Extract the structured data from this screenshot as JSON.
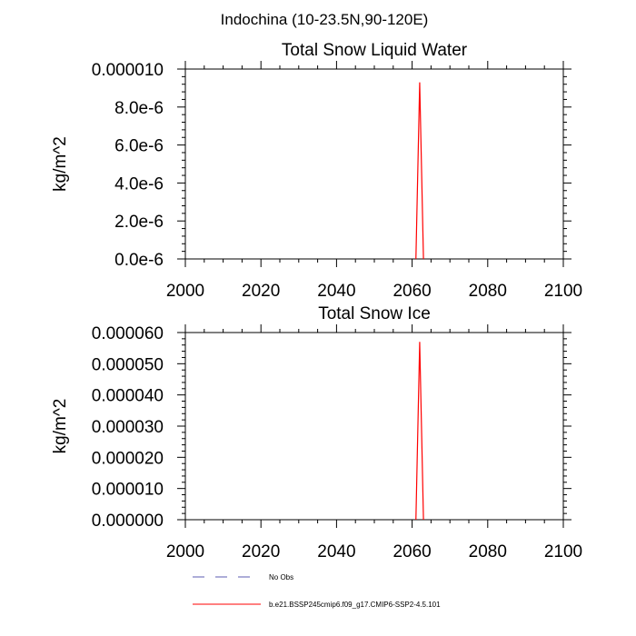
{
  "page_title": "Indochina (10-23.5N,90-120E)",
  "colors": {
    "model_line": "#ff0000",
    "obs_line": "#5b5bb0",
    "axis": "#000000"
  },
  "legend": {
    "items": [
      {
        "label": "No Obs",
        "style": "dashed",
        "color": "#5b5bb0"
      },
      {
        "label": "b.e21.BSSP245cmip6.f09_g17.CMIP6-SSP2-4.5.101",
        "style": "solid",
        "color": "#ff0000"
      }
    ]
  },
  "chart_data": [
    {
      "type": "line",
      "title": "Total Snow Liquid Water",
      "xlabel": "",
      "ylabel": "kg/m^2",
      "xlim": [
        2000,
        2100
      ],
      "ylim": [
        0,
        1e-05
      ],
      "x_ticks": [
        2000,
        2020,
        2040,
        2060,
        2080,
        2100
      ],
      "y_ticks": [
        0,
        2e-06,
        4e-06,
        6e-06,
        8e-06,
        1e-05
      ],
      "y_tick_labels": [
        "0.0e-6",
        "2.0e-6",
        "4.0e-6",
        "6.0e-6",
        "8.0e-6",
        "0.000010"
      ],
      "grid": false,
      "series": [
        {
          "name": "b.e21.BSSP245cmip6.f09_g17.CMIP6-SSP2-4.5.101",
          "x": [
            2061,
            2062,
            2063
          ],
          "y": [
            0,
            9.3e-06,
            0
          ]
        }
      ]
    },
    {
      "type": "line",
      "title": "Total Snow Ice",
      "xlabel": "",
      "ylabel": "kg/m^2",
      "xlim": [
        2000,
        2100
      ],
      "ylim": [
        0,
        6e-05
      ],
      "x_ticks": [
        2000,
        2020,
        2040,
        2060,
        2080,
        2100
      ],
      "y_ticks": [
        0,
        1e-05,
        2e-05,
        3e-05,
        4e-05,
        5e-05,
        6e-05
      ],
      "y_tick_labels": [
        "0.000000",
        "0.000010",
        "0.000020",
        "0.000030",
        "0.000040",
        "0.000050",
        "0.000060"
      ],
      "grid": false,
      "series": [
        {
          "name": "b.e21.BSSP245cmip6.f09_g17.CMIP6-SSP2-4.5.101",
          "x": [
            2061,
            2062,
            2063
          ],
          "y": [
            0,
            5.7e-05,
            0
          ]
        }
      ]
    }
  ]
}
